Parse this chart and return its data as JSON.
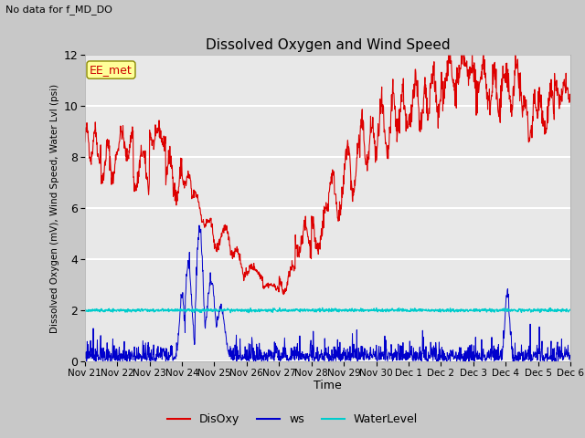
{
  "title": "Dissolved Oxygen and Wind Speed",
  "subtitle": "No data for f_MD_DO",
  "xlabel": "Time",
  "ylabel": "Dissolved Oxygen (mV), Wind Speed, Water Lvl (psi)",
  "ylim": [
    0,
    12
  ],
  "yticks": [
    0,
    2,
    4,
    6,
    8,
    10,
    12
  ],
  "fig_bg_color": "#c8c8c8",
  "plot_bg_color": "#e8e8e8",
  "annotation_box": "EE_met",
  "annotation_color": "#cc0000",
  "annotation_bg": "#ffff99",
  "legend": [
    "DisOxy",
    "ws",
    "WaterLevel"
  ],
  "disoxy_color": "#dd0000",
  "ws_color": "#0000cc",
  "waterlevel_color": "#00cccc",
  "xtick_labels": [
    "Nov 21",
    "Nov 22",
    "Nov 23",
    "Nov 24",
    "Nov 25",
    "Nov 26",
    "Nov 27",
    "Nov 28",
    "Nov 29",
    "Nov 30",
    "Dec 1",
    "Dec 2",
    "Dec 3",
    "Dec 4",
    "Dec 5",
    "Dec 6"
  ]
}
